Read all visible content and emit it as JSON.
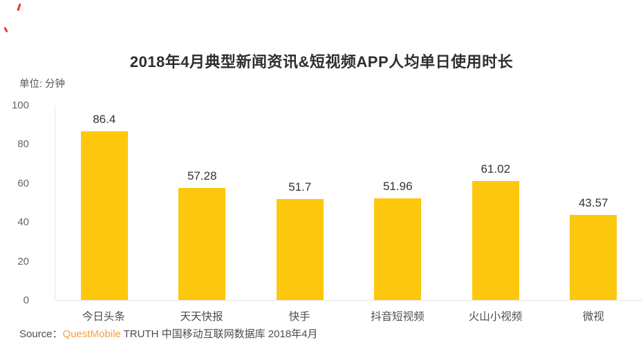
{
  "title": "2018年4月典型新闻资讯&短视频APP人均单日使用时长",
  "unit_label": "单位: 分钟",
  "source": {
    "prefix": "Source：",
    "brand": "QuestMobile",
    "suffix": " TRUTH 中国移动互联网数据库 2018年4月"
  },
  "colors": {
    "bar": "#FDC70D",
    "brand_orange": "#F2A33C",
    "title_text": "#2e2e2e",
    "axis_line": "#e7e7e7",
    "red_mark": "#e8362b"
  },
  "chart_data": {
    "type": "bar",
    "title": "2018年4月典型新闻资讯&短视频APP人均单日使用时长",
    "ylabel": "单位: 分钟",
    "xlabel": "",
    "categories": [
      "今日头条",
      "天天快报",
      "快手",
      "抖音短视频",
      "火山小视频",
      "微视"
    ],
    "values": [
      86.4,
      57.28,
      51.7,
      51.96,
      61.02,
      43.57
    ],
    "value_labels": [
      "86.4",
      "57.28",
      "51.7",
      "51.96",
      "61.02",
      "43.57"
    ],
    "yticks": [
      100,
      80,
      60,
      40,
      20,
      0
    ],
    "ylim": [
      0,
      100
    ],
    "grid": false,
    "legend": null,
    "bar_color": "#FDC70D"
  }
}
